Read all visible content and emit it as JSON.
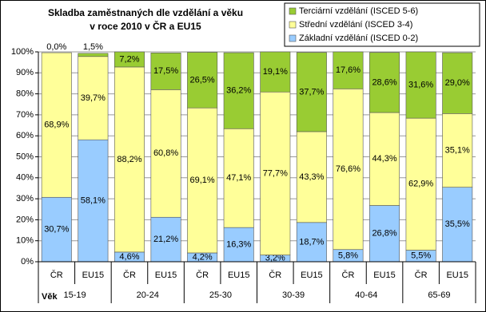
{
  "chart_data": {
    "type": "bar",
    "stacked": true,
    "title": [
      "Skladba zaměstnaných dle vzdělání a věku",
      "v roce 2010 v ČR a EU15"
    ],
    "x_label": "Věk",
    "categories": [
      "ČR",
      "EU15",
      "ČR",
      "EU15",
      "ČR",
      "EU15",
      "ČR",
      "EU15",
      "ČR",
      "EU15",
      "ČR",
      "EU15"
    ],
    "groups": [
      "15-19",
      "20-24",
      "25-30",
      "30-39",
      "40-64",
      "65-69"
    ],
    "series": [
      {
        "name": "Základní vzdělání (ISCED 0-2)",
        "color": "#99ccff",
        "values": [
          30.7,
          58.1,
          4.6,
          21.2,
          4.2,
          16.3,
          3.2,
          18.7,
          5.8,
          26.8,
          5.5,
          35.5
        ],
        "value_labels": [
          "30,7%",
          "58,1%",
          "4,6%",
          "21,2%",
          "4,2%",
          "16,3%",
          "3,2%",
          "18,7%",
          "5,8%",
          "26,8%",
          "5,5%",
          "35,5%"
        ]
      },
      {
        "name": "Střední vzdělání (ISCED 3-4)",
        "color": "#ffff99",
        "values": [
          68.9,
          39.7,
          88.2,
          60.8,
          69.1,
          47.1,
          77.7,
          43.3,
          76.6,
          44.3,
          62.9,
          35.1
        ],
        "value_labels": [
          "68,9%",
          "39,7%",
          "88,2%",
          "60,8%",
          "69,1%",
          "47,1%",
          "77,7%",
          "43,3%",
          "76,6%",
          "44,3%",
          "62,9%",
          "35,1%"
        ]
      },
      {
        "name": "Terciární vzdělání (ISCED 5-6)",
        "color": "#99cc33",
        "values": [
          0.0,
          1.5,
          7.2,
          17.5,
          26.5,
          36.2,
          19.1,
          37.7,
          17.6,
          28.6,
          31.6,
          29.0
        ],
        "value_labels": [
          "0,0%",
          "1,5%",
          "7,2%",
          "17,5%",
          "26,5%",
          "36,2%",
          "19,1%",
          "37,7%",
          "17,6%",
          "28,6%",
          "31,6%",
          "29,0%"
        ]
      }
    ],
    "ylim": [
      0,
      100
    ],
    "yticks": [
      {
        "value": 0,
        "label": "0%"
      },
      {
        "value": 10,
        "label": "10%"
      },
      {
        "value": 20,
        "label": "20%"
      },
      {
        "value": 30,
        "label": "30%"
      },
      {
        "value": 40,
        "label": "40%"
      },
      {
        "value": 50,
        "label": "50%"
      },
      {
        "value": 60,
        "label": "60%"
      },
      {
        "value": 70,
        "label": "70%"
      },
      {
        "value": 80,
        "label": "80%"
      },
      {
        "value": 90,
        "label": "90%"
      },
      {
        "value": 100,
        "label": "100%"
      }
    ],
    "grid": true,
    "legend": "top-right"
  }
}
